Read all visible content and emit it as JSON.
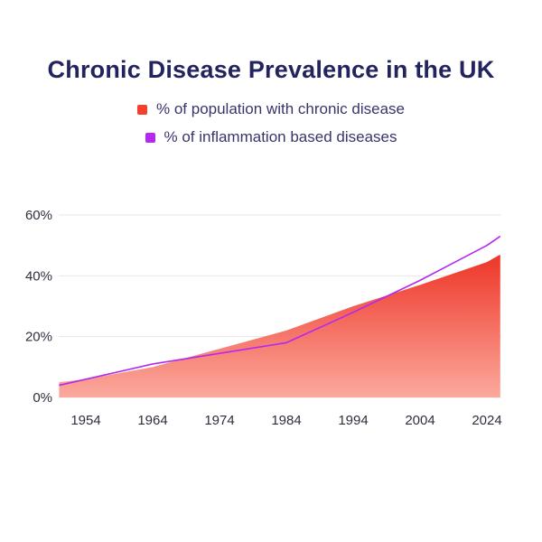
{
  "title": "Chronic Disease Prevalence in the UK",
  "colors": {
    "title_text": "#23245e",
    "legend_text": "#37356c",
    "axis_text": "#2e2e3f",
    "gridline": "#e7e7e7"
  },
  "chart_data": {
    "type": "area",
    "title": "Chronic Disease Prevalence in the UK",
    "xlabel": "",
    "ylabel": "",
    "x_tick_labels": [
      "1954",
      "1964",
      "1974",
      "1984",
      "1994",
      "2004",
      "2024"
    ],
    "y_ticks": [
      0,
      20,
      40,
      60
    ],
    "y_tick_labels": [
      "0%",
      "20%",
      "40%",
      "60%"
    ],
    "ylim": [
      0,
      60
    ],
    "grid": "horizontal",
    "legend_position": "top",
    "series": [
      {
        "name": "% of population with chronic disease",
        "type": "area",
        "color": "#f4402c",
        "gradient_top": "#ee3527",
        "gradient_bottom": "#fba99d",
        "points": [
          [
            1950,
            5
          ],
          [
            1954,
            6
          ],
          [
            1964,
            10
          ],
          [
            1974,
            16
          ],
          [
            1984,
            22
          ],
          [
            1994,
            30
          ],
          [
            2004,
            37
          ],
          [
            2024,
            44.5
          ],
          [
            2028,
            47
          ]
        ]
      },
      {
        "name": "% of inflammation based diseases",
        "type": "line",
        "color": "#b429f0",
        "points": [
          [
            1950,
            4
          ],
          [
            1954,
            6
          ],
          [
            1964,
            11
          ],
          [
            1974,
            14.5
          ],
          [
            1984,
            18
          ],
          [
            1994,
            28
          ],
          [
            2004,
            38.5
          ],
          [
            2024,
            50
          ],
          [
            2028,
            53
          ]
        ]
      }
    ]
  }
}
